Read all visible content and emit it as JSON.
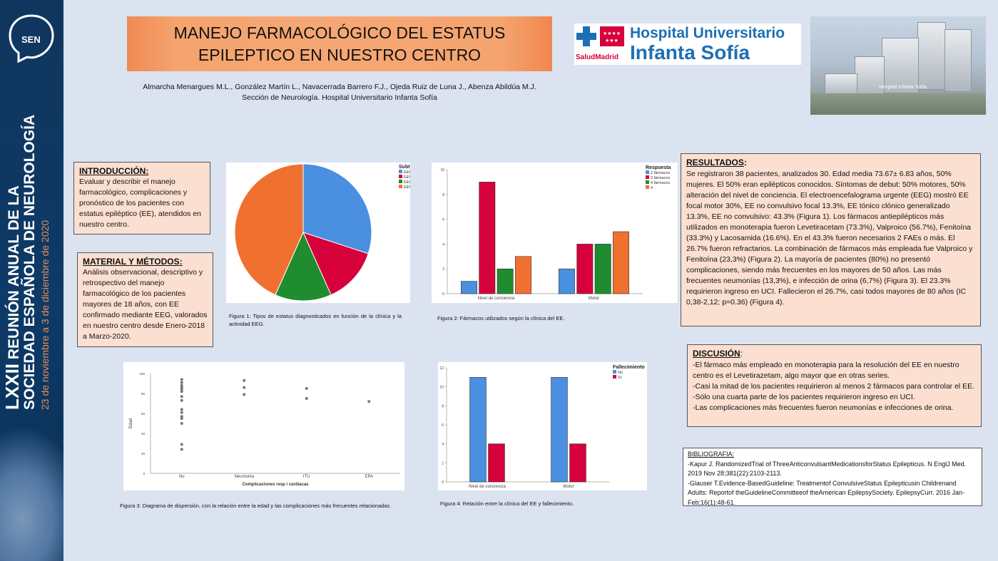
{
  "sidebar": {
    "sen_logo_text": "SEN",
    "edition": "LXXII",
    "line1": "REUNIÓN ANUAL DE LA",
    "line2": "SOCIEDAD ESPAÑOLA DE NEUROLOGÍA",
    "dates": "23 de noviembre a 3 de diciembre de 2020"
  },
  "header": {
    "title_line1": "MANEJO FARMACOLÓGICO DEL ESTATUS",
    "title_line2": "EPILEPTICO EN NUESTRO CENTRO",
    "authors": "Almarcha Menargues M.L., González Martín L., Navacerrada Barrero F.J., Ojeda Ruiz de Luna J., Abenza Abildúa M.J.",
    "affiliation": "Sección de Neurología. Hospital Universitario Infanta Sofía"
  },
  "logo": {
    "line1": "Hospital Universitario",
    "line2": "Infanta Sofía",
    "salud": "SaludMadrid"
  },
  "photo": {
    "sign": "Hospital Infanta Sofía"
  },
  "introduccion": {
    "heading": "INTRODUCCIÓN:",
    "text": "Evaluar y describir el manejo farmacológico, complicaciones y pronóstico de los pacientes con estatus epiléptico (EE), atendidos en nuestro centro."
  },
  "material": {
    "heading": "MATERIAL Y MÉTODOS:",
    "text": "Análisis observacional, descriptivo y retrospectivo del manejo farmacológico de los pacientes mayores de 18 años, con EE confirmado mediante EEG, valorados en nuestro centro desde Enero-2018 a Marzo-2020."
  },
  "resultados": {
    "heading": "RESULTADOS",
    "text": "Se registraron 38 pacientes, analizados 30. Edad media 73.67± 6.83 años, 50% mujeres. El 50% eran epilépticos conocidos. Síntomas de debut: 50% motores, 50% alteración del nivel de conciencia.  El electroencefalograma urgente (EEG) mostró EE  focal motor 30%, EE no convulsivo focal 13.3%, EE tónico clónico generalizado 13.3%, EE no convulsivo: 43.3% (Figura 1). Los fármacos antiepilépticos  más utilizados en monoterapia fueron Levetiracetam (73.3%), Valproico (56.7%), Fenitoína (33.3%) y Lacosamida (16.6%). En el 43.3% fueron necesarios 2 FAEs o más. El 26.7% fueron refractarios. La combinación de fármacos más empleada fue Valproico y Fenitoína (23,3%) (Figura 2). La mayoría de pacientes (80%) no presentó complicaciones, siendo más frecuentes en los mayores de 50 años. Las más frecuentes neumonías (13,3%), e infección de orina  (6,7%) (Figura 3). El 23.3% requirieron ingreso en UCI. Fallecieron el 26.7%, casi todos mayores de 80 años (IC 0,38-2,12; p=0.36) (Figura 4)."
  },
  "discusion": {
    "heading": "DISCUSIÓN",
    "items": [
      "-El fármaco más empleado en monoterapia para la resolución del EE en nuestro centro es el Levetirazetam, algo mayor que en otras series.",
      "-Casi la mitad de los pacientes requirieron al menos 2 fármacos para controlar el EE.",
      "-Sólo una cuarta parte de los pacientes requirieron ingreso en UCI.",
      "-Las complicaciones más frecuentes fueron neumonías e infecciones de orina."
    ]
  },
  "bibliografia": {
    "heading": "BIBLIOGRAFIA:",
    "refs": [
      " -Kapur J. RandomizedTrial of ThreeAnticonvulsantMedicationsforStatus Epilepticus. N EnglJ Med. 2019 Nov 28;381(22):2103-2113.",
      "-Glauser T.Evidence-BasedGuideline: Treatmentof ConvulsiveStatus Epilepticusin Childrenand Adults: Reportof theGuidelineCommitteeof theAmerican EpilepsySociety. EpilepsyCurr. 2016 Jan-Feb;16(1):48-61."
    ]
  },
  "captions": {
    "fig1": "Figura 1: Tipos de estatus diagnosticados en función de la clínica y la actividad  EEG.",
    "fig2": "Figura 2: Fármacos utilizados según la clínica del EE.",
    "fig3": "Figura 3: Diagrama de dispersión, con la relación entre la edad y las complicaciones más frecuentes relacionadas.",
    "fig4": "Figura 4: Relación entre la clínica del EE  y fallecimiento."
  },
  "colors": {
    "blue": "#4a8fe0",
    "red": "#d6003b",
    "green": "#1e8c2f",
    "orange": "#f07030",
    "sidebar": "#10365e",
    "box": "#fbe0d1"
  },
  "chart_data": [
    {
      "type": "pie",
      "legend_title": "Subtipo",
      "labels": [
        "EEFM",
        "EENC",
        "EEG",
        "EENC"
      ],
      "values": [
        30,
        13.3,
        13.3,
        43.3
      ],
      "colors": [
        "#4a8fe0",
        "#d6003b",
        "#1e8c2f",
        "#f07030"
      ],
      "legend": "top-right"
    },
    {
      "type": "bar",
      "legend_title": "Respuesta",
      "categories": [
        "Nivel de conciencia",
        "Motor"
      ],
      "series": [
        {
          "name": "2 fármacos",
          "values": [
            1,
            2
          ],
          "color": "#4a8fe0"
        },
        {
          "name": "3 fármacos",
          "values": [
            9,
            4
          ],
          "color": "#d6003b"
        },
        {
          "name": "4 fármacos",
          "values": [
            2,
            4
          ],
          "color": "#1e8c2f"
        },
        {
          "name": "4",
          "values": [
            3,
            5
          ],
          "color": "#f07030"
        }
      ],
      "ylim": [
        0,
        10
      ],
      "yticks": [
        0,
        2,
        4,
        6,
        8,
        10
      ],
      "legend": "top-right"
    },
    {
      "type": "scatter",
      "xlabel": "Complicaciones resp / cardiacas",
      "ylabel": "Edad",
      "categories": [
        "No",
        "Neumonia",
        "ITU",
        "EPA"
      ],
      "points": [
        {
          "x": "No",
          "y": [
            24,
            29,
            50,
            55,
            57,
            61,
            64,
            73,
            77,
            82,
            84,
            86,
            88,
            91,
            94
          ]
        },
        {
          "x": "Neumonia",
          "y": [
            79,
            86,
            93
          ]
        },
        {
          "x": "ITU",
          "y": [
            75,
            85
          ]
        },
        {
          "x": "EPA",
          "y": [
            72
          ]
        }
      ],
      "ylim": [
        0,
        100
      ],
      "yticks": [
        0,
        20,
        40,
        60,
        80,
        100
      ]
    },
    {
      "type": "bar",
      "legend_title": "Fallecimiento",
      "categories": [
        "Nivel de conciencia",
        "Motor"
      ],
      "series": [
        {
          "name": "No",
          "values": [
            11,
            11
          ],
          "color": "#4a8fe0"
        },
        {
          "name": "Sí",
          "values": [
            4,
            4
          ],
          "color": "#d6003b"
        }
      ],
      "ylim": [
        0,
        12
      ],
      "yticks": [
        0,
        2,
        4,
        6,
        8,
        10,
        12
      ],
      "legend": "top-right"
    }
  ]
}
